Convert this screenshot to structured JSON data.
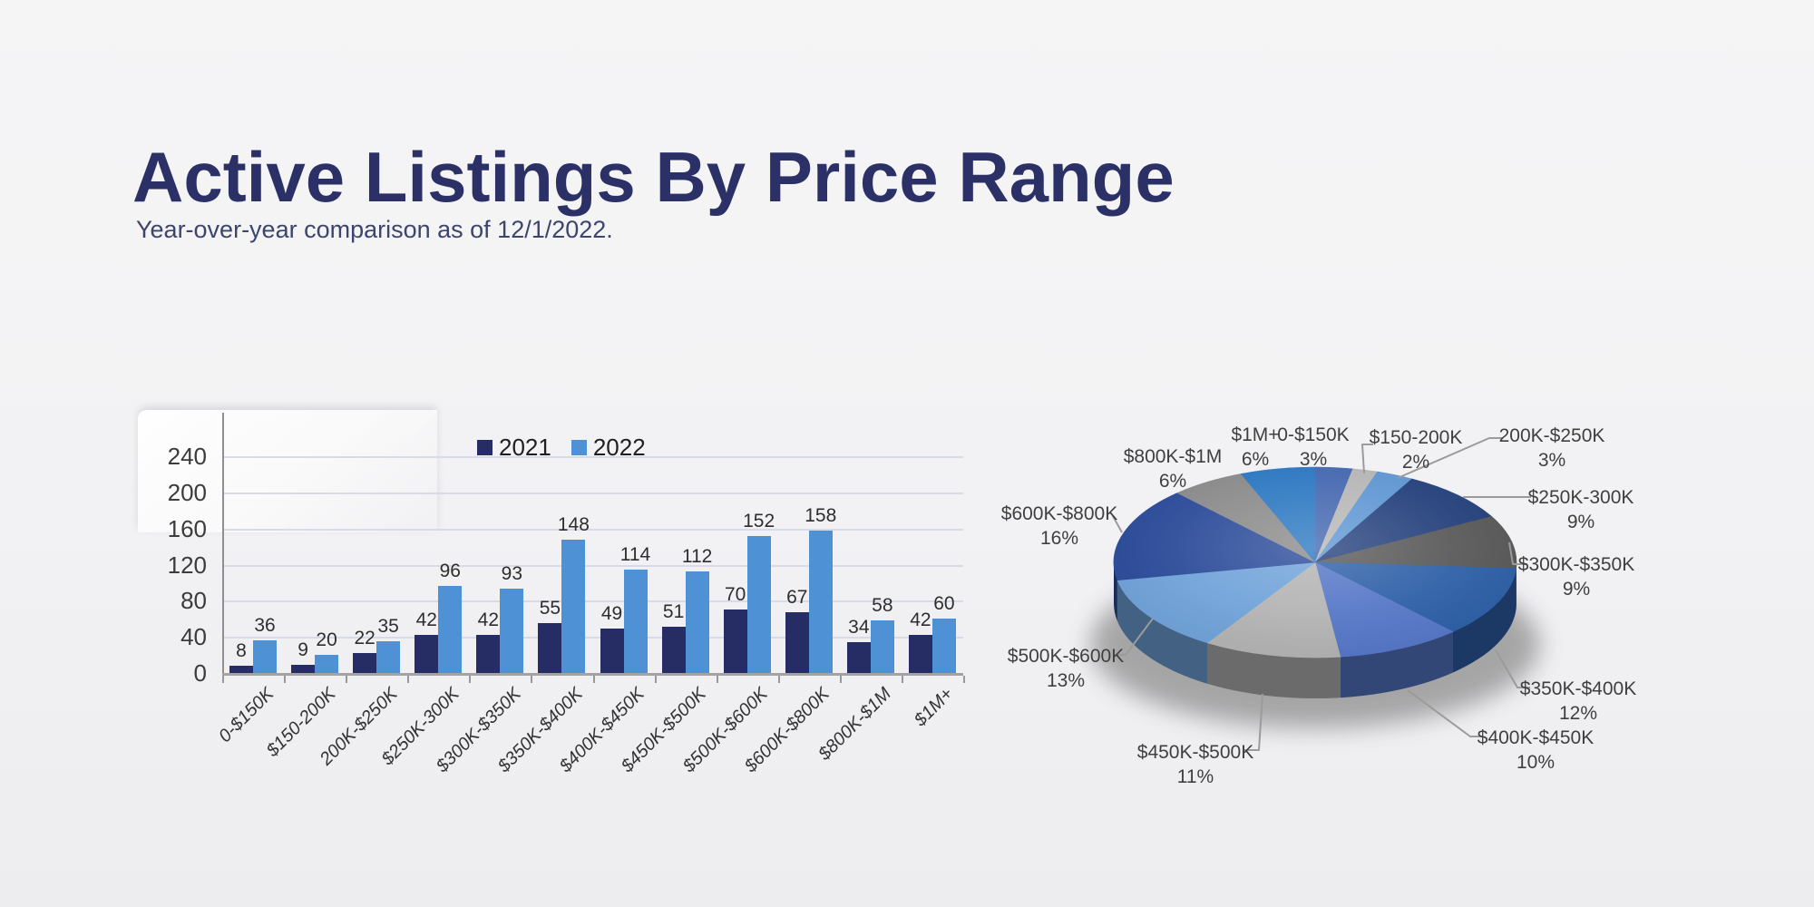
{
  "page": {
    "title": "Active Listings By Price Range",
    "subtitle": "Year-over-year comparison as of 12/1/2022."
  },
  "colors": {
    "background": "#f2f2f4",
    "title_text": "#2b3166",
    "subtitle_text": "#3c456b",
    "axis_text": "#3b3b3b",
    "value_label_text": "#2e2e2e",
    "gridline": "#d7dbe9",
    "leader_line": "#9b9b9b"
  },
  "chart_data": [
    {
      "type": "bar",
      "title": "",
      "xlabel": "",
      "ylabel": "",
      "categories": [
        "0-$150K",
        "$150-200K",
        "200K-$250K",
        "$250K-300K",
        "$300K-$350K",
        "$350K-$400K",
        "$400K-$450K",
        "$450K-$500K",
        "$500K-$600K",
        "$600K-$800K",
        "$800K-$1M",
        "$1M+"
      ],
      "series": [
        {
          "name": "2021",
          "color": "#262d64",
          "values": [
            8,
            9,
            22,
            42,
            42,
            55,
            49,
            51,
            70,
            67,
            34,
            42
          ]
        },
        {
          "name": "2022",
          "color": "#4f91d5",
          "values": [
            36,
            20,
            35,
            96,
            93,
            148,
            114,
            112,
            152,
            158,
            58,
            60
          ]
        }
      ],
      "ylim": [
        0,
        240
      ],
      "yticks": [
        0,
        40,
        80,
        120,
        160,
        200,
        240
      ],
      "grid": true,
      "legend_position": "top-center",
      "value_labels": true
    },
    {
      "type": "pie",
      "style": "3d",
      "start_angle_deg": -90,
      "direction": "clockwise",
      "unit": "%",
      "labels": [
        "0-$150K",
        "$150-200K",
        "200K-$250K",
        "$250K-300K",
        "$300K-$350K",
        "$350K-$400K",
        "$400K-$450K",
        "$450K-$500K",
        "$500K-$600K",
        "$600K-$800K",
        "$800K-$1M",
        "$1M+"
      ],
      "values": [
        3,
        2,
        3,
        9,
        9,
        12,
        10,
        11,
        13,
        16,
        6,
        6
      ],
      "colors": [
        "#4467b0",
        "#b6b6b6",
        "#5e96d3",
        "#24407c",
        "#585858",
        "#2d5fa7",
        "#5576c7",
        "#b3b3b3",
        "#6fa2d9",
        "#2a4a99",
        "#8a8a8a",
        "#2b77c1"
      ]
    }
  ]
}
